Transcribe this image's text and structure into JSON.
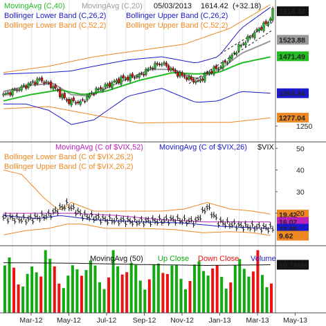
{
  "chart_data": [
    {
      "type": "candlestick",
      "panel": "S&P 500 price",
      "date_label": "05/03/2013",
      "last_value_text": "1614.42",
      "change_text": "(+32.18)",
      "legend": [
        {
          "label": "MovingAvg (C,40)",
          "color": "#22bb22"
        },
        {
          "label": "MovingAvg (C,20)",
          "color": "#999999"
        },
        {
          "label": "Bollinger Lower Band (C,26,2)",
          "color": "#1a1acc"
        },
        {
          "label": "Bollinger Upper Band (C,26,2)",
          "color": "#1a1acc"
        },
        {
          "label": "Bollinger Lower Band (C,52,2)",
          "color": "#ee8822"
        },
        {
          "label": "Bollinger Upper Band (C,52,2)",
          "color": "#ee8822"
        }
      ],
      "y_ticks": [
        1250
      ],
      "value_tags": [
        {
          "text": "1614.42",
          "value": 1614.42,
          "bg": "#111111",
          "fg": "#ffffff"
        },
        {
          "text": "1523.88",
          "value": 1523.88,
          "bg": "#999999",
          "fg": "#ffffff"
        },
        {
          "text": "1471.49",
          "value": 1471.49,
          "bg": "#22bb22",
          "fg": "#ffffff"
        },
        {
          "text": "1354.34",
          "value": 1354.34,
          "bg": "#1a1acc",
          "fg": "#ffffff"
        },
        {
          "text": "1277.04",
          "value": 1277.04,
          "bg": "#ee8822",
          "fg": "#ffffff"
        }
      ],
      "ylim": [
        1200,
        1650
      ]
    },
    {
      "type": "ohlc",
      "panel": "VIX",
      "title": "$VIX",
      "legend": [
        {
          "label": "MovingAvg (C of $VIX,52)",
          "color": "#bb22bb"
        },
        {
          "label": "MovingAvg (C of $VIX,26)",
          "color": "#1a1acc"
        },
        {
          "label": "Bollinger Lower Band (C of $VIX,26,2)",
          "color": "#ee8822"
        },
        {
          "label": "Bollinger Upper Band (C of $VIX,26,2)",
          "color": "#ee8822"
        }
      ],
      "y_ticks": [
        50,
        40,
        30,
        20
      ],
      "value_tags": [
        {
          "text": "19.42",
          "value": 19.42,
          "bg": "#ee8822",
          "fg": "#ffffff"
        },
        {
          "text": "16.02",
          "value": 16.02,
          "bg": "#bb22bb",
          "fg": "#ffffff"
        },
        {
          "text": "12.88",
          "value": 12.88,
          "bg": "#1a1acc",
          "fg": "#ffffff"
        },
        {
          "text": "9.62",
          "value": 9.62,
          "bg": "#ee8822",
          "fg": "#ffffff"
        }
      ],
      "ylim": [
        5,
        53
      ]
    },
    {
      "type": "bar",
      "panel": "Volume",
      "legend": [
        {
          "label": "MovingAvg (50)",
          "color": "#111111"
        },
        {
          "label": "Up Close",
          "color": "#11aa11"
        },
        {
          "label": "Down Close",
          "color": "#ee1111"
        },
        {
          "label": "Volume",
          "color": "#1a1acc"
        }
      ],
      "y_ticks": [],
      "value_tags": [
        {
          "text": "10.749M",
          "value": 10.749,
          "bg": "#111111",
          "fg": "#ffffff"
        }
      ],
      "ylim": [
        0,
        15
      ]
    }
  ],
  "x_axis": {
    "labels": [
      "Mar-12",
      "May-12",
      "Jul-12",
      "Sep-12",
      "Nov-12",
      "Jan-13",
      "Mar-13",
      "May-13"
    ]
  }
}
